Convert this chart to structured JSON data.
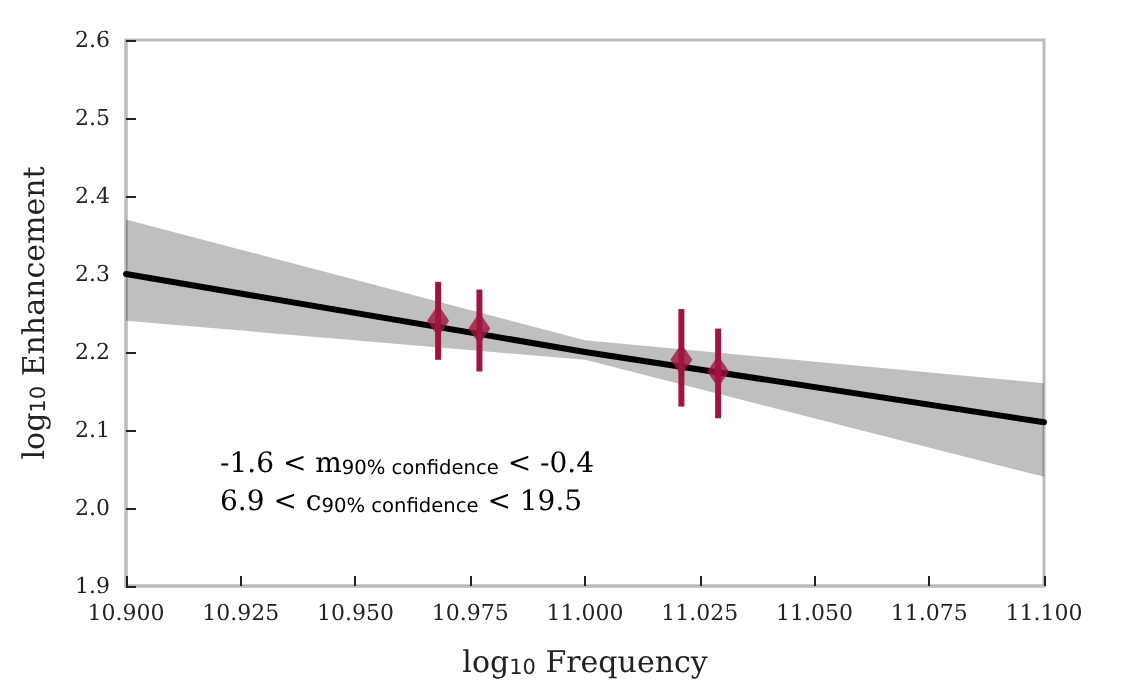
{
  "chart_data": {
    "type": "scatter",
    "xlabel": "log$_{10}$ Frequency",
    "ylabel": "log$_{10}$ Enhancement",
    "series": [
      {
        "type": "line",
        "color": "#000000",
        "x": [
          10.9,
          11.0,
          11.1
        ],
        "values": [
          2.3,
          2.2,
          2.11
        ],
        "lower": [
          2.24,
          2.19,
          2.04
        ],
        "upper": [
          2.37,
          2.215,
          2.16
        ],
        "marker": "none"
      },
      {
        "color": "#a0153e",
        "x": [
          10.968,
          10.977,
          11.021,
          11.029
        ],
        "values": [
          2.24,
          2.23,
          2.19,
          2.175
        ],
        "errors": [
          [
            2.19,
            2.29
          ],
          [
            2.175,
            2.28
          ],
          [
            2.13,
            2.255
          ],
          [
            2.115,
            2.23
          ]
        ],
        "marker": "diamond"
      }
    ],
    "xlim": [
      10.9,
      11.1
    ],
    "xticks": [
      {
        "value": 10.9,
        "label": "10.900"
      },
      {
        "value": 10.925,
        "label": "10.925"
      },
      {
        "value": 10.95,
        "label": "10.950"
      },
      {
        "value": 10.975,
        "label": "10.975"
      },
      {
        "value": 11.0,
        "label": "11.000"
      },
      {
        "value": 11.025,
        "label": "11.025"
      },
      {
        "value": 11.05,
        "label": "11.050"
      },
      {
        "value": 11.075,
        "label": "11.075"
      },
      {
        "value": 11.1,
        "label": "11.100"
      }
    ],
    "ylim": [
      1.9,
      2.6
    ],
    "yticks": [
      1.9,
      {
        "value": 2.0,
        "label": "2.0"
      },
      2.1,
      2.2,
      2.3,
      2.4,
      2.5,
      2.6
    ],
    "annotations": [
      "-1.6 < m$_{90% confidence}$ < -0.4",
      "6.9 < c$_{90% confidence}$ < 19.5"
    ],
    "grid": false
  }
}
